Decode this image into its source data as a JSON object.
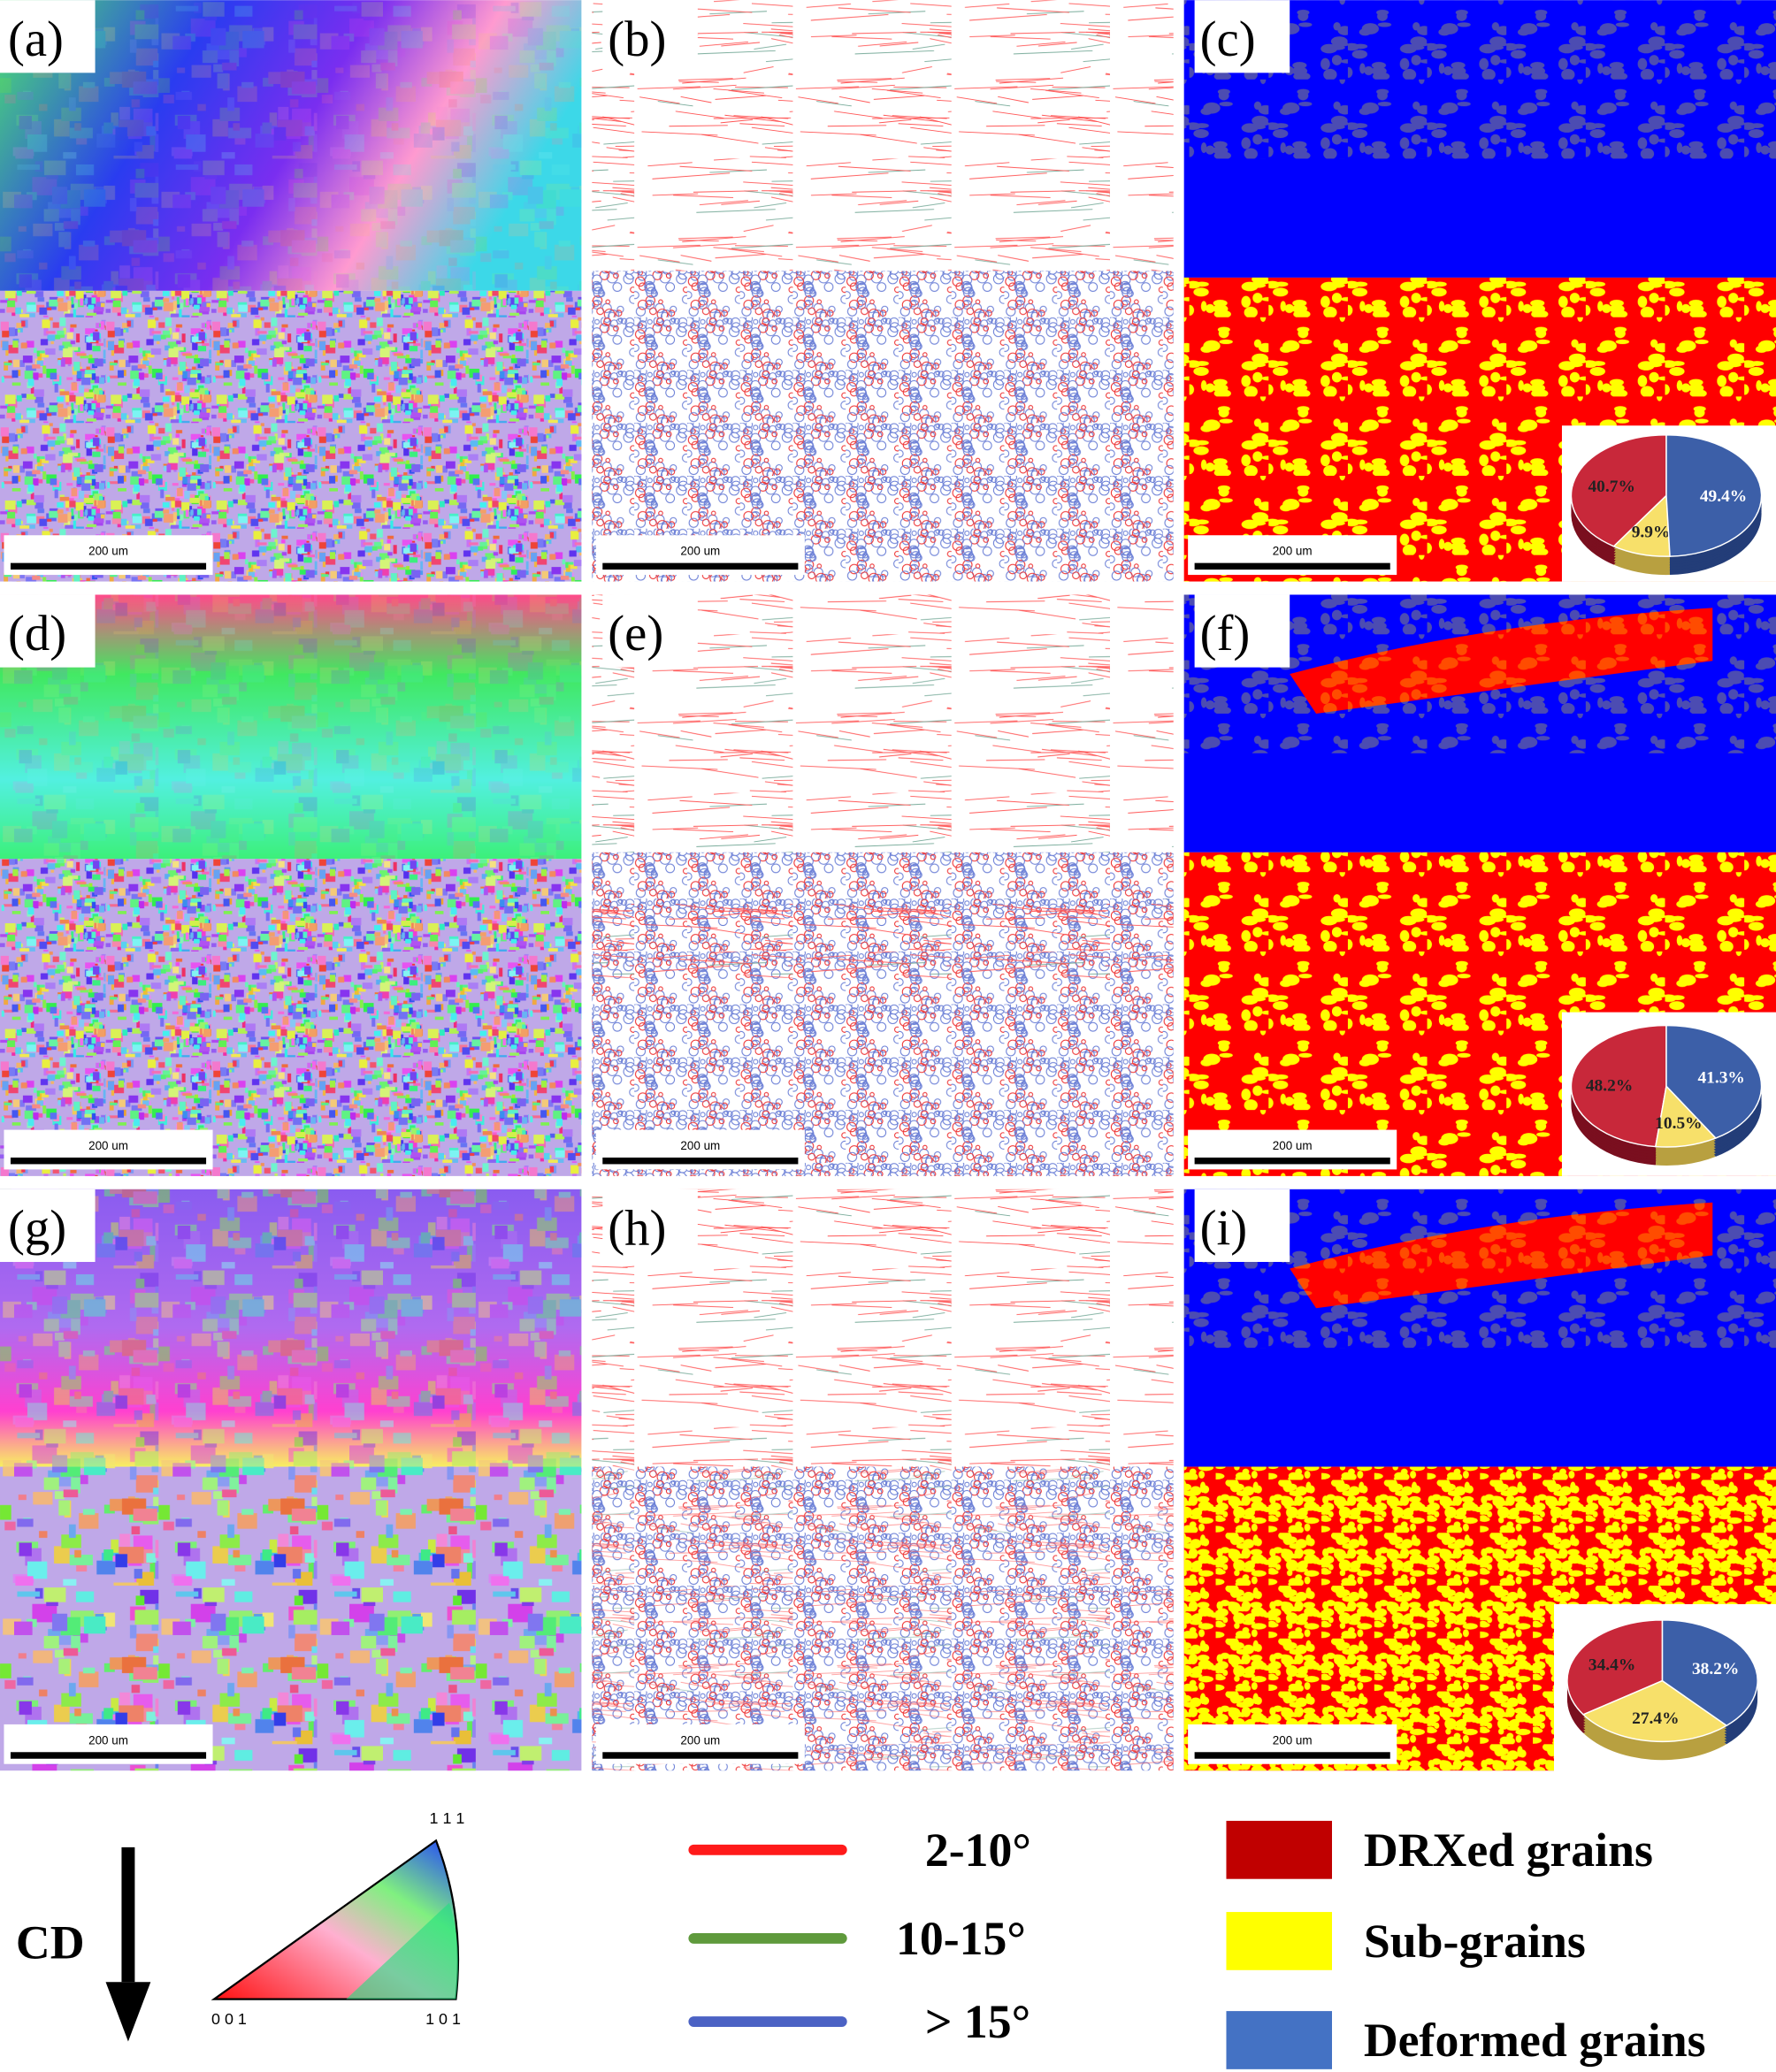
{
  "panels": [
    {
      "label": "(a)",
      "scale_bar": "200 um"
    },
    {
      "label": "(b)",
      "scale_bar": "200 um"
    },
    {
      "label": "(c)",
      "scale_bar": "200 um"
    },
    {
      "label": "(d)",
      "scale_bar": "200 um"
    },
    {
      "label": "(e)",
      "scale_bar": "200 um"
    },
    {
      "label": "(f)",
      "scale_bar": "200 um"
    },
    {
      "label": "(g)",
      "scale_bar": "200 um"
    },
    {
      "label": "(h)",
      "scale_bar": "200 um"
    },
    {
      "label": "(i)",
      "scale_bar": "200 um"
    }
  ],
  "pies": [
    {
      "values": [
        40.7,
        9.9,
        49.4
      ],
      "value_labels": [
        "40.7%",
        "9.9%",
        "49.4%"
      ]
    },
    {
      "values": [
        48.2,
        10.5,
        41.3
      ],
      "value_labels": [
        "48.2%",
        "10.5%",
        "41.3%"
      ]
    },
    {
      "values": [
        34.4,
        27.4,
        38.2
      ],
      "value_labels": [
        "34.4%",
        "27.4%",
        "38.2%"
      ]
    }
  ],
  "ipf_legend": {
    "direction": "CD",
    "corners": [
      "1 1 1",
      "0 0 1",
      "1 0 1"
    ]
  },
  "misorientation_legend": [
    {
      "label": "2-10°",
      "color": "#ff1a1a"
    },
    {
      "label": "10-15°",
      "color": "#5f9a3c"
    },
    {
      "label": "> 15°",
      "color": "#4b62c4"
    }
  ],
  "grain_legend": [
    {
      "label": "DRXed grains",
      "color": "#c00000"
    },
    {
      "label": "Sub-grains",
      "color": "#ffff00"
    },
    {
      "label": "Deformed grains",
      "color": "#4472c4"
    }
  ]
}
